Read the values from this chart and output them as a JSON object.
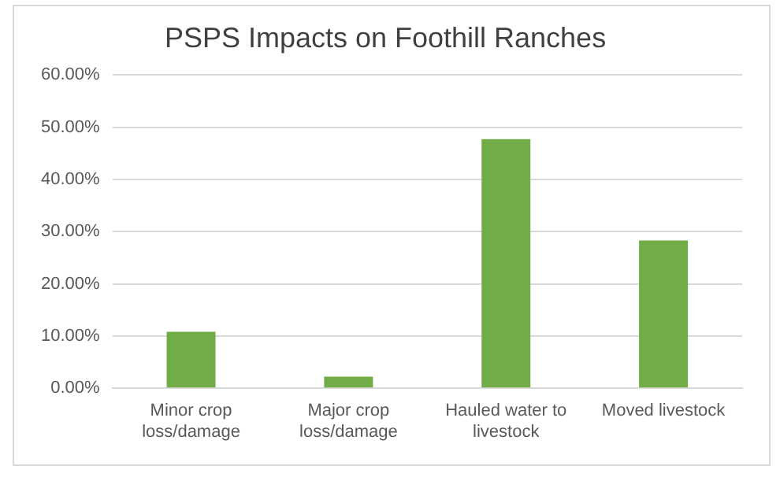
{
  "chart_data": {
    "type": "bar",
    "title": "PSPS Impacts on Foothill Ranches",
    "categories": [
      "Minor crop loss/damage",
      "Major crop loss/damage",
      "Hauled water to livestock",
      "Moved livestock"
    ],
    "values": [
      10.8,
      2.2,
      47.7,
      28.3
    ],
    "color": "#70ad47",
    "ylim": [
      0,
      60
    ],
    "yticks": [
      {
        "value": 0,
        "label": "0.00%"
      },
      {
        "value": 10,
        "label": "10.00%"
      },
      {
        "value": 20,
        "label": "20.00%"
      },
      {
        "value": 30,
        "label": "30.00%"
      },
      {
        "value": 40,
        "label": "40.00%"
      },
      {
        "value": 50,
        "label": "50.00%"
      },
      {
        "value": 60,
        "label": "60.00%"
      }
    ],
    "grid": "y"
  }
}
